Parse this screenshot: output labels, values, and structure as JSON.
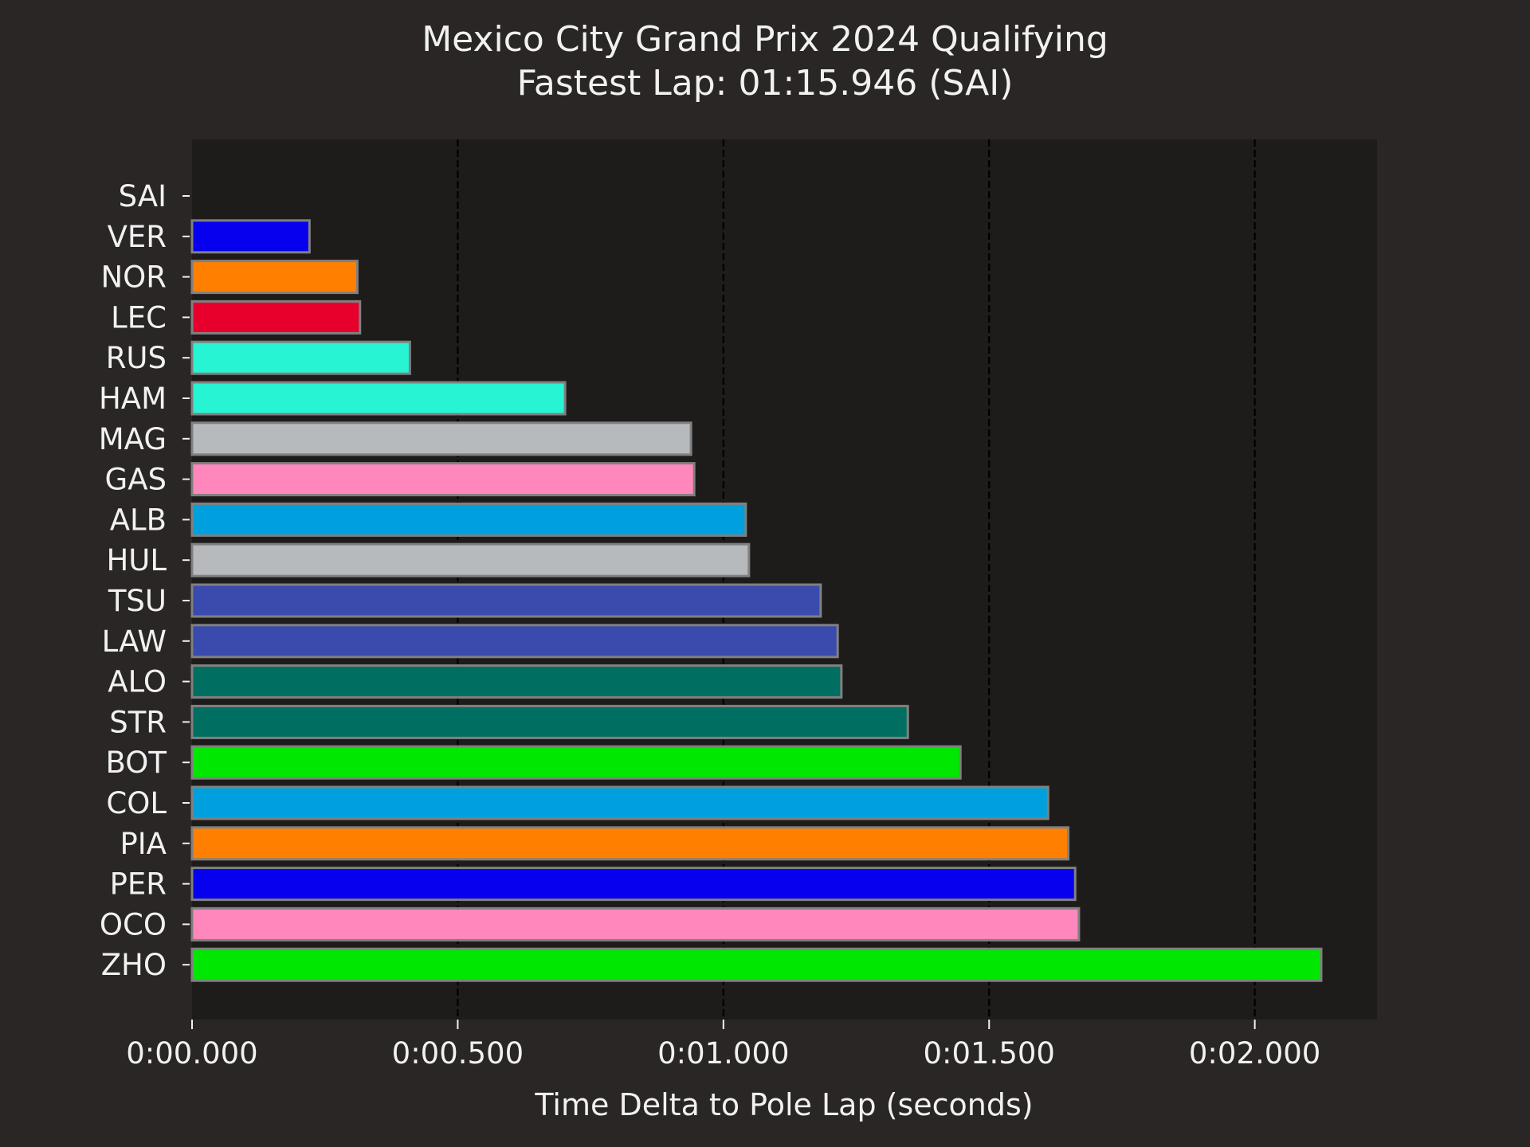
{
  "chart_data": {
    "type": "bar",
    "orientation": "horizontal",
    "title": "Mexico City Grand Prix 2024 Qualifying",
    "subtitle": "Fastest Lap: 01:15.946 (SAI)",
    "xlabel": "Time Delta to Pole Lap (seconds)",
    "ylabel": "",
    "xlim": [
      0,
      2.23
    ],
    "xticks": [
      {
        "value": 0.0,
        "label": "0:00.000"
      },
      {
        "value": 0.5,
        "label": "0:00.500"
      },
      {
        "value": 1.0,
        "label": "0:01.000"
      },
      {
        "value": 1.5,
        "label": "0:01.500"
      },
      {
        "value": 2.0,
        "label": "0:02.000"
      }
    ],
    "grid": "vertical dashed",
    "categories": [
      "SAI",
      "VER",
      "NOR",
      "LEC",
      "RUS",
      "HAM",
      "MAG",
      "GAS",
      "ALB",
      "HUL",
      "TSU",
      "LAW",
      "ALO",
      "STR",
      "BOT",
      "COL",
      "PIA",
      "PER",
      "OCO",
      "ZHO"
    ],
    "values": [
      0.0,
      0.221,
      0.311,
      0.316,
      0.41,
      0.702,
      0.939,
      0.945,
      1.042,
      1.048,
      1.183,
      1.215,
      1.222,
      1.347,
      1.446,
      1.611,
      1.649,
      1.662,
      1.669,
      2.125
    ],
    "colors": [
      "#e8002d",
      "#0600ef",
      "#ff8000",
      "#e8002d",
      "#27f4d2",
      "#27f4d2",
      "#b6babd",
      "#ff87bc",
      "#00a0de",
      "#b6babd",
      "#3a4aad",
      "#3a4aad",
      "#006f62",
      "#006f62",
      "#00e701",
      "#00a0de",
      "#ff8000",
      "#0600ef",
      "#ff87bc",
      "#00e701"
    ],
    "bar_edge_color": "#808080",
    "background_color": "#292625",
    "plot_background_color": "#1e1c1b"
  }
}
